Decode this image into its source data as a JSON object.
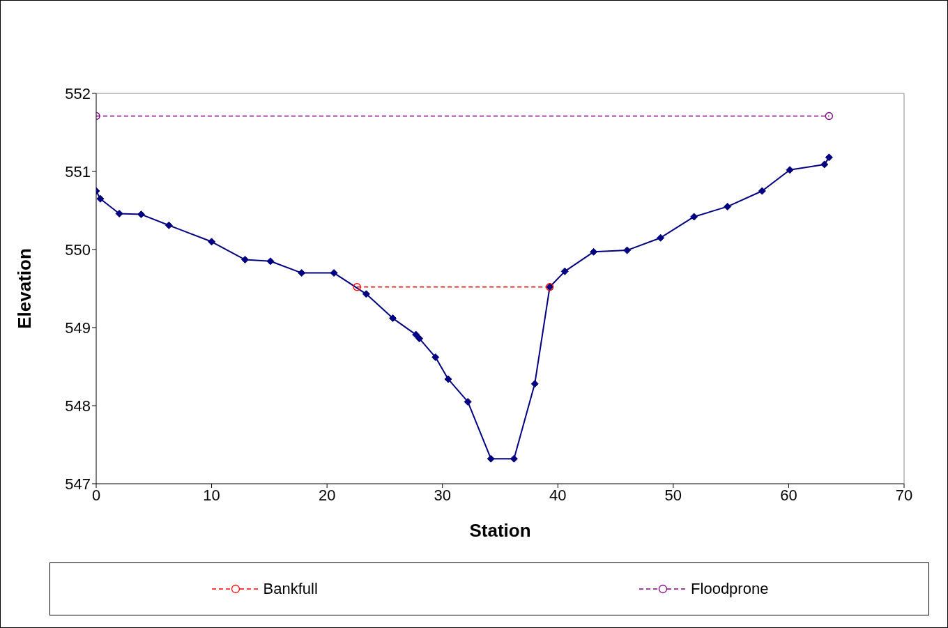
{
  "chart_data": {
    "type": "line",
    "xlabel": "Station",
    "ylabel": "Elevation",
    "xlim": [
      0,
      70
    ],
    "xticks": [
      0,
      10,
      20,
      30,
      40,
      50,
      60,
      70
    ],
    "ylim": [
      547,
      552
    ],
    "yticks": [
      547,
      548,
      549,
      550,
      551,
      552
    ],
    "legend": "bottom",
    "series": [
      {
        "color": "#000080",
        "marker": "diamond",
        "line_style": "solid",
        "x": [
          0,
          0.36,
          2.0,
          3.9,
          6.3,
          10.0,
          12.9,
          15.1,
          17.8,
          20.6,
          23.4,
          25.7,
          27.7,
          28.0,
          29.4,
          30.5,
          32.2,
          34.2,
          36.2,
          38.0,
          39.3,
          40.6,
          43.1,
          46.0,
          48.9,
          51.8,
          54.7,
          57.7,
          60.1,
          63.1,
          63.5
        ],
        "values": [
          550.75,
          550.65,
          550.46,
          550.45,
          550.31,
          550.1,
          549.87,
          549.85,
          549.7,
          549.7,
          549.43,
          549.12,
          548.91,
          548.86,
          548.62,
          548.34,
          548.05,
          547.32,
          547.32,
          548.28,
          549.52,
          549.72,
          549.97,
          549.99,
          550.15,
          550.42,
          550.55,
          550.75,
          551.02,
          551.09,
          551.18
        ]
      },
      {
        "name": "Bankfull",
        "color": "#ff0000",
        "marker": "circle",
        "line_style": "dashed",
        "x": [
          22.6,
          39.3
        ],
        "values": [
          549.52,
          549.52
        ]
      },
      {
        "name": "Floodprone",
        "color": "#800080",
        "marker": "circle",
        "line_style": "dashed",
        "x": [
          0,
          63.5
        ],
        "values": [
          551.71,
          551.71
        ]
      }
    ]
  }
}
